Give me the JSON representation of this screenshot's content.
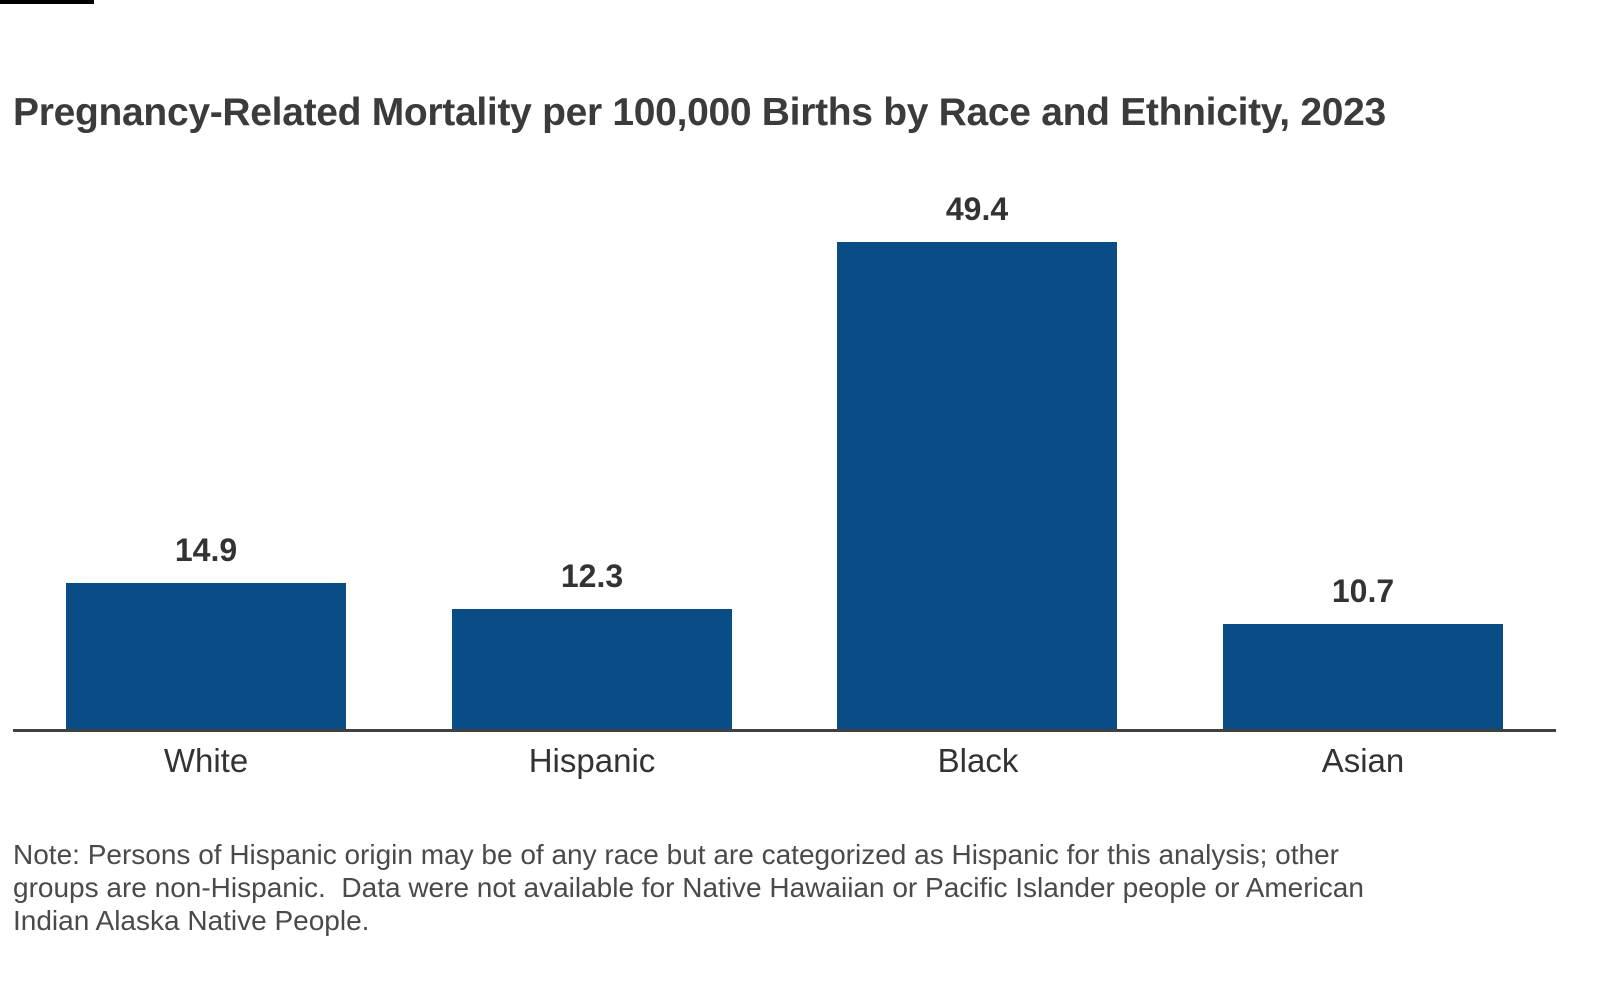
{
  "page": {
    "title": "Pregnancy-Related Mortality per 100,000 Births by Race and Ethnicity, 2023",
    "note": "Note: Persons of Hispanic origin may be of any race but are categorized as Hispanic for this analysis; other groups are non-Hispanic.  Data were not available for Native Hawaiian or Pacific Islander people or American Indian Alaska Native People."
  },
  "colors": {
    "bar": "#0A4C85",
    "title_text": "#3B3B3B",
    "value_label_text": "#333333",
    "category_label_text": "#333333",
    "note_text": "#4A4A4A",
    "axis_line": "#404040",
    "top_accent": "#000000",
    "background": "#FFFFFF"
  },
  "chart_data": {
    "type": "bar",
    "title": "Pregnancy-Related Mortality per 100,000 Births by Race and Ethnicity, 2023",
    "categories": [
      "White",
      "Hispanic",
      "Black",
      "Asian"
    ],
    "values": [
      14.9,
      12.3,
      49.4,
      10.7
    ],
    "value_labels": [
      "14.9",
      "12.3",
      "49.4",
      "10.7"
    ],
    "xlabel": "",
    "ylabel": "",
    "ylim": [
      0,
      55
    ],
    "grid": false,
    "legend": "none",
    "bar_color": "#0A4C85",
    "note": "Note: Persons of Hispanic origin may be of any race but are categorized as Hispanic for this analysis; other groups are non-Hispanic.  Data were not available for Native Hawaiian or Pacific Islander people or American Indian Alaska Native People."
  }
}
